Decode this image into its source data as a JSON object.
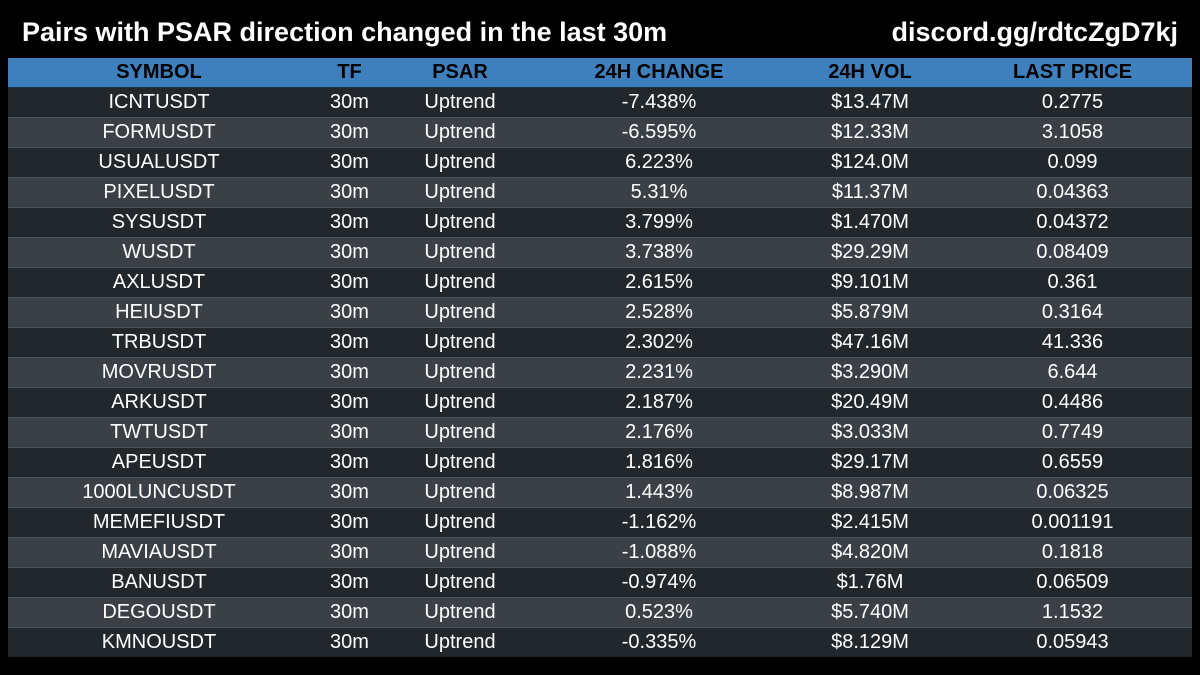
{
  "header": {
    "title": "Pairs with PSAR direction changed in the last 30m",
    "invite": "discord.gg/rdtcZgD7kj"
  },
  "table": {
    "columns": [
      "SYMBOL",
      "TF",
      "PSAR",
      "24H CHANGE",
      "24H VOL",
      "LAST PRICE"
    ],
    "rows": [
      [
        "ICNTUSDT",
        "30m",
        "Uptrend",
        "-7.438%",
        "$13.47M",
        "0.2775"
      ],
      [
        "FORMUSDT",
        "30m",
        "Uptrend",
        "-6.595%",
        "$12.33M",
        "3.1058"
      ],
      [
        "USUALUSDT",
        "30m",
        "Uptrend",
        "6.223%",
        "$124.0M",
        "0.099"
      ],
      [
        "PIXELUSDT",
        "30m",
        "Uptrend",
        "5.31%",
        "$11.37M",
        "0.04363"
      ],
      [
        "SYSUSDT",
        "30m",
        "Uptrend",
        "3.799%",
        "$1.470M",
        "0.04372"
      ],
      [
        "WUSDT",
        "30m",
        "Uptrend",
        "3.738%",
        "$29.29M",
        "0.08409"
      ],
      [
        "AXLUSDT",
        "30m",
        "Uptrend",
        "2.615%",
        "$9.101M",
        "0.361"
      ],
      [
        "HEIUSDT",
        "30m",
        "Uptrend",
        "2.528%",
        "$5.879M",
        "0.3164"
      ],
      [
        "TRBUSDT",
        "30m",
        "Uptrend",
        "2.302%",
        "$47.16M",
        "41.336"
      ],
      [
        "MOVRUSDT",
        "30m",
        "Uptrend",
        "2.231%",
        "$3.290M",
        "6.644"
      ],
      [
        "ARKUSDT",
        "30m",
        "Uptrend",
        "2.187%",
        "$20.49M",
        "0.4486"
      ],
      [
        "TWTUSDT",
        "30m",
        "Uptrend",
        "2.176%",
        "$3.033M",
        "0.7749"
      ],
      [
        "APEUSDT",
        "30m",
        "Uptrend",
        "1.816%",
        "$29.17M",
        "0.6559"
      ],
      [
        "1000LUNCUSDT",
        "30m",
        "Uptrend",
        "1.443%",
        "$8.987M",
        "0.06325"
      ],
      [
        "MEMEFIUSDT",
        "30m",
        "Uptrend",
        "-1.162%",
        "$2.415M",
        "0.001191"
      ],
      [
        "MAVIAUSDT",
        "30m",
        "Uptrend",
        "-1.088%",
        "$4.820M",
        "0.1818"
      ],
      [
        "BANUSDT",
        "30m",
        "Uptrend",
        "-0.974%",
        "$1.76M",
        "0.06509"
      ],
      [
        "DEGOUSDT",
        "30m",
        "Uptrend",
        "0.523%",
        "$5.740M",
        "1.1532"
      ],
      [
        "KMNOUSDT",
        "30m",
        "Uptrend",
        "-0.335%",
        "$8.129M",
        "0.05943"
      ]
    ]
  },
  "colors": {
    "background": "#000000",
    "header_bg": "#3d80bd",
    "row_dark": "#22272b",
    "row_light": "#3a4045",
    "text": "#ffffff",
    "header_text": "#000000"
  }
}
